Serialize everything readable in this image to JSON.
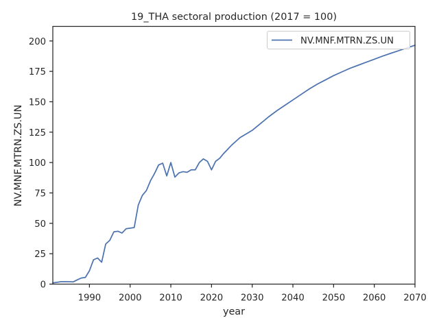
{
  "chart_data": {
    "type": "line",
    "title": "19_THA sectoral production (2017 = 100)",
    "xlabel": "year",
    "ylabel": "NV.MNF.MTRN.ZS.UN",
    "xlim": [
      1981,
      2070
    ],
    "ylim": [
      0,
      212
    ],
    "x_ticks": [
      1990,
      2000,
      2010,
      2020,
      2030,
      2040,
      2050,
      2060,
      2070
    ],
    "y_ticks": [
      0,
      25,
      50,
      75,
      100,
      125,
      150,
      175,
      200
    ],
    "grid": false,
    "legend_position": "top-right",
    "series": [
      {
        "name": "NV.MNF.MTRN.ZS.UN",
        "color": "#4c72b0",
        "x": [
          1981,
          1982,
          1983,
          1984,
          1985,
          1986,
          1987,
          1988,
          1989,
          1990,
          1991,
          1992,
          1993,
          1994,
          1995,
          1996,
          1997,
          1998,
          1999,
          2000,
          2001,
          2002,
          2003,
          2004,
          2005,
          2006,
          2007,
          2008,
          2009,
          2010,
          2011,
          2012,
          2013,
          2014,
          2015,
          2016,
          2017,
          2018,
          2019,
          2020,
          2021,
          2022,
          2023,
          2024,
          2025,
          2026,
          2027,
          2028,
          2029,
          2030,
          2032,
          2034,
          2036,
          2038,
          2040,
          2042,
          2044,
          2046,
          2048,
          2050,
          2052,
          2054,
          2056,
          2058,
          2060,
          2062,
          2064,
          2066,
          2068,
          2070
        ],
        "values": [
          1.0,
          1.5,
          2.0,
          2.0,
          2.0,
          1.8,
          3.5,
          5.0,
          5.5,
          11.0,
          20.0,
          21.5,
          18.0,
          33.0,
          36.0,
          43.0,
          43.5,
          42.0,
          45.5,
          46.0,
          46.5,
          65.0,
          73.0,
          77.0,
          85.0,
          91.0,
          98.0,
          99.5,
          89.0,
          100.0,
          88.0,
          91.5,
          92.5,
          92.0,
          94.0,
          94.0,
          100.0,
          103.0,
          101.0,
          94.0,
          101.0,
          103.5,
          107.5,
          111.0,
          114.5,
          117.5,
          120.5,
          122.5,
          124.5,
          126.5,
          132.0,
          137.5,
          142.5,
          147.0,
          151.5,
          156.0,
          160.5,
          164.5,
          168.0,
          171.5,
          174.5,
          177.5,
          180.0,
          182.5,
          185.0,
          187.5,
          189.8,
          192.0,
          194.3,
          196.5
        ]
      }
    ]
  }
}
